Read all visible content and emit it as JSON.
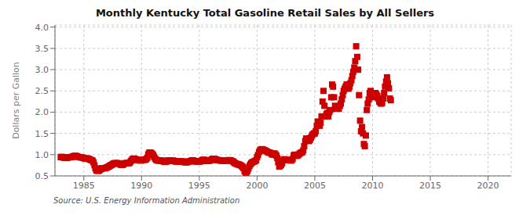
{
  "chart_data": {
    "type": "scatter",
    "title": "Monthly Kentucky Total Gasoline Retail Sales by All Sellers",
    "y_label": "Dollars per Gallon",
    "annotations": [
      "Source: U.S. Energy Information Administration"
    ],
    "xlim": [
      1982.5,
      2022.0
    ],
    "ylim": [
      0.5,
      4.05
    ],
    "xticks": [
      1985,
      1990,
      1995,
      2000,
      2005,
      2010,
      2015,
      2020
    ],
    "yticks": [
      0.5,
      {
        "value": 1.0,
        "label": "1.0"
      },
      1.5,
      {
        "value": 2.0,
        "label": "2.0"
      },
      2.5,
      {
        "value": 3.0,
        "label": "3.0"
      },
      3.5,
      {
        "value": 4.0,
        "label": "4.0"
      }
    ],
    "grid": true,
    "color": "#cc0000",
    "marker": "square",
    "x": [
      1983.0,
      1983.08,
      1983.17,
      1983.25,
      1983.33,
      1983.42,
      1983.5,
      1983.58,
      1983.67,
      1983.75,
      1983.83,
      1983.92,
      1984.0,
      1984.08,
      1984.17,
      1984.25,
      1984.33,
      1984.42,
      1984.5,
      1984.58,
      1984.67,
      1984.75,
      1984.83,
      1984.92,
      1985.0,
      1985.08,
      1985.17,
      1985.25,
      1985.33,
      1985.42,
      1985.5,
      1985.58,
      1985.67,
      1985.75,
      1985.83,
      1985.92,
      1986.0,
      1986.08,
      1986.17,
      1986.25,
      1986.33,
      1986.42,
      1986.5,
      1986.58,
      1986.67,
      1986.75,
      1986.83,
      1986.92,
      1987.0,
      1987.08,
      1987.17,
      1987.25,
      1987.33,
      1987.42,
      1987.5,
      1987.58,
      1987.67,
      1987.75,
      1987.83,
      1987.92,
      1988.0,
      1988.08,
      1988.17,
      1988.25,
      1988.33,
      1988.42,
      1988.5,
      1988.58,
      1988.67,
      1988.75,
      1988.83,
      1988.92,
      1989.0,
      1989.08,
      1989.17,
      1989.25,
      1989.33,
      1989.42,
      1989.5,
      1989.58,
      1989.67,
      1989.75,
      1989.83,
      1989.92,
      1990.0,
      1990.08,
      1990.17,
      1990.25,
      1990.33,
      1990.42,
      1990.5,
      1990.58,
      1990.67,
      1990.75,
      1990.83,
      1990.92,
      1991.0,
      1991.08,
      1991.17,
      1991.25,
      1991.33,
      1991.42,
      1991.5,
      1991.58,
      1991.67,
      1991.75,
      1991.83,
      1991.92,
      1992.0,
      1992.08,
      1992.17,
      1992.25,
      1992.33,
      1992.42,
      1992.5,
      1992.58,
      1992.67,
      1992.75,
      1992.83,
      1992.92,
      1993.0,
      1993.08,
      1993.17,
      1993.25,
      1993.33,
      1993.42,
      1993.5,
      1993.58,
      1993.67,
      1993.75,
      1993.83,
      1993.92,
      1994.0,
      1994.08,
      1994.17,
      1994.25,
      1994.33,
      1994.42,
      1994.5,
      1994.58,
      1994.67,
      1994.75,
      1994.83,
      1994.92,
      1995.0,
      1995.08,
      1995.17,
      1995.25,
      1995.33,
      1995.42,
      1995.5,
      1995.58,
      1995.67,
      1995.75,
      1995.83,
      1995.92,
      1996.0,
      1996.08,
      1996.17,
      1996.25,
      1996.33,
      1996.42,
      1996.5,
      1996.58,
      1996.67,
      1996.75,
      1996.83,
      1996.92,
      1997.0,
      1997.08,
      1997.17,
      1997.25,
      1997.33,
      1997.42,
      1997.5,
      1997.58,
      1997.67,
      1997.75,
      1997.83,
      1997.92,
      1998.0,
      1998.08,
      1998.17,
      1998.25,
      1998.33,
      1998.42,
      1998.5,
      1998.58,
      1998.67,
      1998.75,
      1998.83,
      1998.92,
      1999.0,
      1999.08,
      1999.17,
      1999.25,
      1999.33,
      1999.42,
      1999.5,
      1999.58,
      1999.67,
      1999.75,
      1999.83,
      1999.92,
      2000.0,
      2000.08,
      2000.17,
      2000.25,
      2000.33,
      2000.42,
      2000.5,
      2000.58,
      2000.67,
      2000.75,
      2000.83,
      2000.92,
      2001.0,
      2001.08,
      2001.17,
      2001.25,
      2001.33,
      2001.42,
      2001.5,
      2001.58,
      2001.67,
      2001.75,
      2001.83,
      2001.92,
      2002.0,
      2002.08,
      2002.17,
      2002.25,
      2002.33,
      2002.42,
      2002.5,
      2002.58,
      2002.67,
      2002.75,
      2002.83,
      2002.92,
      2003.0,
      2003.08,
      2003.17,
      2003.25,
      2003.33,
      2003.42,
      2003.5,
      2003.58,
      2003.67,
      2003.75,
      2003.83,
      2003.92,
      2004.0,
      2004.08,
      2004.17,
      2004.25,
      2004.33,
      2004.42,
      2004.5,
      2004.58,
      2004.67,
      2004.75,
      2004.83,
      2004.92,
      2005.0,
      2005.08,
      2005.17,
      2005.25,
      2005.33,
      2005.42,
      2005.5,
      2005.58,
      2005.67,
      2005.75,
      2005.83,
      2005.92,
      2006.0,
      2006.08,
      2006.17,
      2006.25,
      2006.33,
      2006.42,
      2006.5,
      2006.58,
      2006.67,
      2006.75,
      2006.83,
      2006.92,
      2007.0,
      2007.08,
      2007.17,
      2007.25,
      2007.33,
      2007.42,
      2007.5,
      2007.58,
      2007.67,
      2007.75,
      2007.83,
      2007.92,
      2008.0,
      2008.08,
      2008.17,
      2008.25,
      2008.33,
      2008.42,
      2008.5,
      2008.58,
      2008.67,
      2008.75,
      2008.83,
      2008.92,
      2009.0,
      2009.08,
      2009.17,
      2009.25,
      2009.33,
      2009.42,
      2009.5,
      2009.58,
      2009.67,
      2009.75,
      2009.83,
      2009.92,
      2010.0,
      2010.08,
      2010.17,
      2010.25,
      2010.33,
      2010.42,
      2010.5,
      2010.58,
      2010.67,
      2010.75,
      2010.83,
      2010.92,
      2011.0,
      2011.08,
      2011.17,
      2011.25,
      2011.33,
      2011.42,
      2011.5,
      2011.58
    ],
    "values": [
      0.94,
      0.95,
      0.94,
      0.93,
      0.93,
      0.93,
      0.92,
      0.93,
      0.94,
      0.94,
      0.94,
      0.94,
      0.95,
      0.96,
      0.97,
      0.97,
      0.97,
      0.96,
      0.95,
      0.94,
      0.94,
      0.94,
      0.93,
      0.93,
      0.92,
      0.91,
      0.91,
      0.91,
      0.91,
      0.9,
      0.89,
      0.88,
      0.87,
      0.86,
      0.82,
      0.75,
      0.68,
      0.63,
      0.62,
      0.62,
      0.63,
      0.65,
      0.67,
      0.68,
      0.68,
      0.68,
      0.68,
      0.69,
      0.7,
      0.71,
      0.72,
      0.74,
      0.75,
      0.76,
      0.78,
      0.79,
      0.8,
      0.8,
      0.8,
      0.8,
      0.79,
      0.78,
      0.77,
      0.76,
      0.76,
      0.77,
      0.79,
      0.8,
      0.8,
      0.8,
      0.8,
      0.8,
      0.82,
      0.85,
      0.88,
      0.9,
      0.91,
      0.9,
      0.89,
      0.88,
      0.87,
      0.87,
      0.87,
      0.86,
      0.87,
      0.88,
      0.88,
      0.88,
      0.88,
      0.9,
      0.93,
      1.01,
      1.05,
      1.05,
      1.04,
      1.02,
      0.99,
      0.95,
      0.91,
      0.88,
      0.87,
      0.86,
      0.86,
      0.86,
      0.86,
      0.86,
      0.85,
      0.84,
      0.83,
      0.83,
      0.84,
      0.86,
      0.86,
      0.86,
      0.86,
      0.86,
      0.86,
      0.86,
      0.85,
      0.84,
      0.84,
      0.84,
      0.84,
      0.84,
      0.84,
      0.84,
      0.84,
      0.84,
      0.83,
      0.82,
      0.82,
      0.82,
      0.83,
      0.84,
      0.84,
      0.85,
      0.86,
      0.87,
      0.86,
      0.85,
      0.84,
      0.84,
      0.84,
      0.84,
      0.84,
      0.84,
      0.85,
      0.87,
      0.88,
      0.88,
      0.87,
      0.86,
      0.85,
      0.85,
      0.86,
      0.86,
      0.87,
      0.89,
      0.9,
      0.9,
      0.9,
      0.89,
      0.88,
      0.87,
      0.87,
      0.87,
      0.86,
      0.86,
      0.86,
      0.86,
      0.86,
      0.86,
      0.86,
      0.86,
      0.87,
      0.87,
      0.87,
      0.86,
      0.85,
      0.84,
      0.82,
      0.8,
      0.79,
      0.78,
      0.77,
      0.77,
      0.76,
      0.75,
      0.73,
      0.71,
      0.68,
      0.61,
      0.58,
      0.58,
      0.62,
      0.67,
      0.73,
      0.77,
      0.8,
      0.82,
      0.83,
      0.84,
      0.85,
      0.87,
      0.94,
      0.99,
      1.06,
      1.1,
      1.12,
      1.13,
      1.12,
      1.11,
      1.1,
      1.09,
      1.08,
      1.06,
      1.05,
      1.05,
      1.04,
      1.02,
      1.0,
      1.01,
      1.03,
      1.01,
      0.98,
      0.92,
      0.82,
      0.72,
      0.74,
      0.76,
      0.8,
      0.87,
      0.89,
      0.89,
      0.88,
      0.87,
      0.87,
      0.87,
      0.87,
      0.86,
      0.87,
      0.9,
      0.98,
      1.0,
      0.98,
      0.97,
      0.98,
      1.0,
      1.02,
      1.04,
      1.05,
      1.06,
      1.1,
      1.2,
      1.32,
      1.38,
      1.38,
      1.35,
      1.32,
      1.35,
      1.4,
      1.45,
      1.48,
      1.5,
      1.5,
      1.55,
      1.68,
      1.78,
      1.7,
      1.68,
      1.75,
      1.9,
      2.25,
      2.5,
      2.15,
      1.9,
      1.95,
      1.98,
      1.9,
      2.0,
      2.05,
      2.35,
      2.65,
      2.6,
      2.35,
      2.15,
      2.08,
      2.1,
      2.1,
      2.08,
      2.15,
      2.2,
      2.3,
      2.4,
      2.5,
      2.55,
      2.6,
      2.65,
      2.65,
      2.55,
      2.6,
      2.68,
      2.75,
      2.85,
      2.95,
      3.05,
      3.2,
      3.55,
      3.3,
      3.0,
      2.4,
      1.8,
      1.55,
      1.65,
      1.5,
      1.25,
      1.2,
      1.45,
      2.05,
      2.2,
      2.3,
      2.45,
      2.5,
      2.4,
      2.35,
      2.38,
      2.4,
      2.45,
      2.42,
      2.38,
      2.32,
      2.25,
      2.22,
      2.2,
      2.22,
      2.32,
      2.45,
      2.6,
      2.72,
      2.82,
      2.68,
      2.56,
      2.32,
      2.28
    ]
  }
}
